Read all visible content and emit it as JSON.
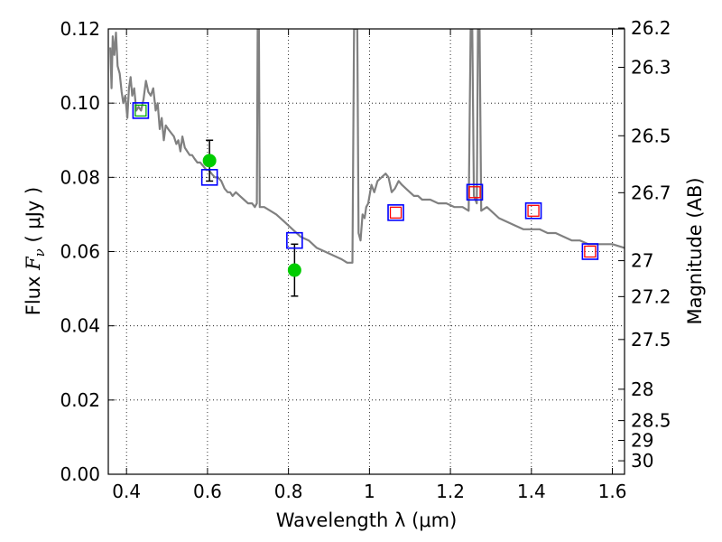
{
  "chart_data": {
    "type": "line",
    "title": "",
    "xlabel": "Wavelength  λ (μm)",
    "ylabel": "Flux  F_ν  ( μJy )",
    "ylabel_parts": {
      "pre": "Flux  ",
      "var": "F",
      "sub": "ν",
      "post": "  ( μJy )"
    },
    "y2label": "Magnitude (AB)",
    "xlim": [
      0.355,
      1.63
    ],
    "ylim": [
      0,
      0.12
    ],
    "grid": true,
    "x_ticks": [
      {
        "value": 0.4,
        "label": "0.4"
      },
      {
        "value": 0.6,
        "label": "0.6"
      },
      {
        "value": 0.8,
        "label": "0.8"
      },
      {
        "value": 1.0,
        "label": "1"
      },
      {
        "value": 1.2,
        "label": "1.2"
      },
      {
        "value": 1.4,
        "label": "1.4"
      },
      {
        "value": 1.6,
        "label": "1.6"
      }
    ],
    "y_ticks": [
      {
        "value": 0.0,
        "label": "0.00"
      },
      {
        "value": 0.02,
        "label": "0.02"
      },
      {
        "value": 0.04,
        "label": "0.04"
      },
      {
        "value": 0.06,
        "label": "0.06"
      },
      {
        "value": 0.08,
        "label": "0.08"
      },
      {
        "value": 0.1,
        "label": "0.10"
      },
      {
        "value": 0.12,
        "label": "0.12"
      }
    ],
    "y2_ticks": [
      {
        "value": 26.2,
        "label": "26.2"
      },
      {
        "value": 26.3,
        "label": "26.3"
      },
      {
        "value": 26.5,
        "label": "26.5"
      },
      {
        "value": 26.7,
        "label": "26.7"
      },
      {
        "value": 27.0,
        "label": "27"
      },
      {
        "value": 27.2,
        "label": "27.2"
      },
      {
        "value": 27.5,
        "label": "27.5"
      },
      {
        "value": 28.0,
        "label": "28"
      },
      {
        "value": 28.5,
        "label": "28.5"
      },
      {
        "value": 29.0,
        "label": "29"
      },
      {
        "value": 30.0,
        "label": "30"
      }
    ],
    "series": [
      {
        "kind": "line",
        "color": "#808080",
        "points": [
          [
            0.36,
            0.115
          ],
          [
            0.363,
            0.104
          ],
          [
            0.366,
            0.118
          ],
          [
            0.37,
            0.113
          ],
          [
            0.374,
            0.119
          ],
          [
            0.378,
            0.11
          ],
          [
            0.383,
            0.108
          ],
          [
            0.388,
            0.103
          ],
          [
            0.392,
            0.1
          ],
          [
            0.397,
            0.102
          ],
          [
            0.402,
            0.096
          ],
          [
            0.406,
            0.104
          ],
          [
            0.41,
            0.107
          ],
          [
            0.414,
            0.102
          ],
          [
            0.419,
            0.104
          ],
          [
            0.424,
            0.098
          ],
          [
            0.43,
            0.099
          ],
          [
            0.436,
            0.098
          ],
          [
            0.442,
            0.101
          ],
          [
            0.448,
            0.106
          ],
          [
            0.454,
            0.103
          ],
          [
            0.46,
            0.102
          ],
          [
            0.466,
            0.104
          ],
          [
            0.472,
            0.098
          ],
          [
            0.477,
            0.1
          ],
          [
            0.482,
            0.093
          ],
          [
            0.487,
            0.096
          ],
          [
            0.492,
            0.09
          ],
          [
            0.497,
            0.094
          ],
          [
            0.503,
            0.093
          ],
          [
            0.51,
            0.092
          ],
          [
            0.517,
            0.091
          ],
          [
            0.523,
            0.089
          ],
          [
            0.528,
            0.09
          ],
          [
            0.533,
            0.087
          ],
          [
            0.538,
            0.091
          ],
          [
            0.544,
            0.088
          ],
          [
            0.55,
            0.087
          ],
          [
            0.556,
            0.086
          ],
          [
            0.562,
            0.086
          ],
          [
            0.568,
            0.085
          ],
          [
            0.575,
            0.084
          ],
          [
            0.582,
            0.084
          ],
          [
            0.59,
            0.083
          ],
          [
            0.597,
            0.082
          ],
          [
            0.603,
            0.082
          ],
          [
            0.61,
            0.081
          ],
          [
            0.618,
            0.08
          ],
          [
            0.626,
            0.08
          ],
          [
            0.634,
            0.079
          ],
          [
            0.642,
            0.077
          ],
          [
            0.65,
            0.076
          ],
          [
            0.656,
            0.076
          ],
          [
            0.662,
            0.075
          ],
          [
            0.67,
            0.076
          ],
          [
            0.68,
            0.075
          ],
          [
            0.69,
            0.074
          ],
          [
            0.7,
            0.073
          ],
          [
            0.71,
            0.073
          ],
          [
            0.717,
            0.072
          ],
          [
            0.722,
            0.073
          ],
          [
            0.724,
            0.12
          ],
          [
            0.727,
            0.12
          ],
          [
            0.729,
            0.072
          ],
          [
            0.74,
            0.072
          ],
          [
            0.755,
            0.071
          ],
          [
            0.77,
            0.07
          ],
          [
            0.79,
            0.068
          ],
          [
            0.81,
            0.066
          ],
          [
            0.83,
            0.064
          ],
          [
            0.85,
            0.063
          ],
          [
            0.87,
            0.061
          ],
          [
            0.89,
            0.06
          ],
          [
            0.91,
            0.059
          ],
          [
            0.93,
            0.058
          ],
          [
            0.945,
            0.057
          ],
          [
            0.958,
            0.057
          ],
          [
            0.962,
            0.12
          ],
          [
            0.97,
            0.12
          ],
          [
            0.973,
            0.065
          ],
          [
            0.978,
            0.063
          ],
          [
            0.983,
            0.07
          ],
          [
            0.988,
            0.069
          ],
          [
            0.992,
            0.072
          ],
          [
            0.997,
            0.073
          ],
          [
            1.0,
            0.075
          ],
          [
            1.005,
            0.078
          ],
          [
            1.012,
            0.076
          ],
          [
            1.02,
            0.079
          ],
          [
            1.03,
            0.08
          ],
          [
            1.04,
            0.081
          ],
          [
            1.047,
            0.08
          ],
          [
            1.055,
            0.076
          ],
          [
            1.063,
            0.077
          ],
          [
            1.072,
            0.079
          ],
          [
            1.08,
            0.078
          ],
          [
            1.09,
            0.077
          ],
          [
            1.1,
            0.076
          ],
          [
            1.11,
            0.075
          ],
          [
            1.12,
            0.075
          ],
          [
            1.13,
            0.074
          ],
          [
            1.15,
            0.074
          ],
          [
            1.17,
            0.073
          ],
          [
            1.19,
            0.073
          ],
          [
            1.21,
            0.072
          ],
          [
            1.23,
            0.072
          ],
          [
            1.245,
            0.071
          ],
          [
            1.25,
            0.12
          ],
          [
            1.254,
            0.12
          ],
          [
            1.258,
            0.075
          ],
          [
            1.265,
            0.073
          ],
          [
            1.268,
            0.12
          ],
          [
            1.272,
            0.12
          ],
          [
            1.276,
            0.071
          ],
          [
            1.29,
            0.072
          ],
          [
            1.3,
            0.071
          ],
          [
            1.32,
            0.069
          ],
          [
            1.34,
            0.068
          ],
          [
            1.36,
            0.067
          ],
          [
            1.38,
            0.066
          ],
          [
            1.4,
            0.066
          ],
          [
            1.42,
            0.066
          ],
          [
            1.44,
            0.065
          ],
          [
            1.46,
            0.065
          ],
          [
            1.48,
            0.064
          ],
          [
            1.5,
            0.063
          ],
          [
            1.52,
            0.063
          ],
          [
            1.54,
            0.062
          ],
          [
            1.56,
            0.062
          ],
          [
            1.58,
            0.062
          ],
          [
            1.6,
            0.062
          ],
          [
            1.63,
            0.061
          ]
        ]
      },
      {
        "kind": "scatter",
        "marker": "circle",
        "color": "#00cc00",
        "points": [
          {
            "x": 0.605,
            "y": 0.0845,
            "err": 0.0055
          },
          {
            "x": 0.815,
            "y": 0.055,
            "err": 0.007
          }
        ]
      },
      {
        "kind": "scatter",
        "marker": "square",
        "color": "#0000ff",
        "points": [
          {
            "x": 0.435,
            "y": 0.098
          },
          {
            "x": 0.605,
            "y": 0.08
          },
          {
            "x": 0.815,
            "y": 0.063
          },
          {
            "x": 1.065,
            "y": 0.0705
          },
          {
            "x": 1.26,
            "y": 0.076
          },
          {
            "x": 1.405,
            "y": 0.071
          },
          {
            "x": 1.545,
            "y": 0.06
          }
        ]
      },
      {
        "kind": "scatter",
        "marker": "small-square",
        "color": "#00aa00",
        "points": [
          {
            "x": 0.435,
            "y": 0.098
          }
        ]
      },
      {
        "kind": "scatter",
        "marker": "small-square",
        "color": "#ff0000",
        "points": [
          {
            "x": 1.065,
            "y": 0.0705
          },
          {
            "x": 1.26,
            "y": 0.076
          },
          {
            "x": 1.405,
            "y": 0.071
          },
          {
            "x": 1.545,
            "y": 0.06
          }
        ]
      }
    ]
  }
}
